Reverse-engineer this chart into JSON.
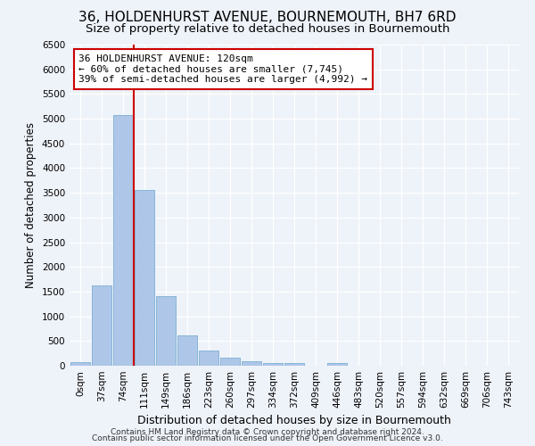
{
  "title": "36, HOLDENHURST AVENUE, BOURNEMOUTH, BH7 6RD",
  "subtitle": "Size of property relative to detached houses in Bournemouth",
  "xlabel": "Distribution of detached houses by size in Bournemouth",
  "ylabel": "Number of detached properties",
  "footer_line1": "Contains HM Land Registry data © Crown copyright and database right 2024.",
  "footer_line2": "Contains public sector information licensed under the Open Government Licence v3.0.",
  "bar_labels": [
    "0sqm",
    "37sqm",
    "74sqm",
    "111sqm",
    "149sqm",
    "186sqm",
    "223sqm",
    "260sqm",
    "297sqm",
    "334sqm",
    "372sqm",
    "409sqm",
    "446sqm",
    "483sqm",
    "520sqm",
    "557sqm",
    "594sqm",
    "632sqm",
    "669sqm",
    "706sqm",
    "743sqm"
  ],
  "bar_values": [
    75,
    1620,
    5070,
    3560,
    1400,
    610,
    300,
    155,
    90,
    55,
    50,
    0,
    60,
    0,
    0,
    0,
    0,
    0,
    0,
    0,
    0
  ],
  "bar_color": "#aec6e8",
  "bar_edge_color": "#7aafd4",
  "vline_color": "#cc0000",
  "annotation_text": "36 HOLDENHURST AVENUE: 120sqm\n← 60% of detached houses are smaller (7,745)\n39% of semi-detached houses are larger (4,992) →",
  "annotation_box_color": "#ffffff",
  "annotation_box_edge_color": "#cc0000",
  "ylim": [
    0,
    6500
  ],
  "yticks": [
    0,
    500,
    1000,
    1500,
    2000,
    2500,
    3000,
    3500,
    4000,
    4500,
    5000,
    5500,
    6000,
    6500
  ],
  "bg_color": "#eef2f9",
  "grid_color": "#ffffff",
  "title_fontsize": 11,
  "subtitle_fontsize": 9.5,
  "xlabel_fontsize": 9,
  "ylabel_fontsize": 8.5,
  "tick_fontsize": 7.5,
  "annotation_fontsize": 8
}
